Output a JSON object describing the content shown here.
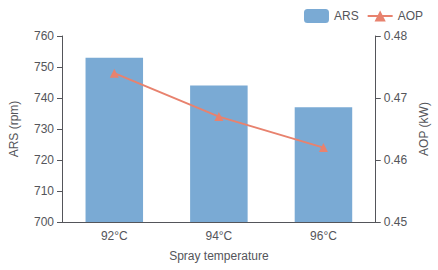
{
  "chart_data": {
    "type": "bar",
    "categories": [
      "92°C",
      "94°C",
      "96°C"
    ],
    "series": [
      {
        "name": "ARS",
        "type": "bar",
        "color": "#7aaad4",
        "values": [
          753,
          744,
          737
        ]
      },
      {
        "name": "AOP",
        "type": "line",
        "color": "#e8826e",
        "marker": "triangle",
        "axis": "y2",
        "values": [
          0.474,
          0.467,
          0.462
        ]
      }
    ],
    "xlabel": "Spray temperature",
    "ylabel": "ARS (rpm)",
    "y2label": "AOP (kW)",
    "ylim": [
      700,
      760
    ],
    "yticks": [
      700,
      710,
      720,
      730,
      740,
      750,
      760
    ],
    "y2lim": [
      0.45,
      0.48
    ],
    "y2ticks": [
      0.45,
      0.46,
      0.47,
      0.48
    ],
    "legend": "upper right",
    "grid": false
  }
}
